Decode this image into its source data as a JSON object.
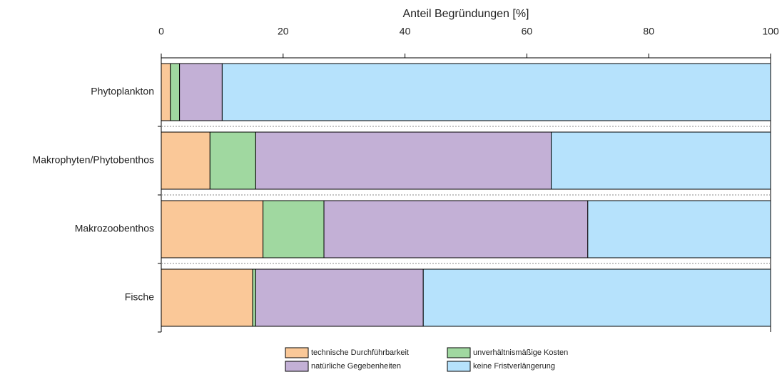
{
  "chart_data": {
    "type": "stacked_barh",
    "x_label": "Anteil Begründungen [%]",
    "categories": [
      "Phytoplankton",
      "Makrophyten/Phytobenthos",
      "Makrozoobenthos",
      "Fische"
    ],
    "series": [
      {
        "name": "technische Durchführbarkeit",
        "color": "#fac898",
        "values": [
          1.5,
          8,
          16.7,
          15
        ]
      },
      {
        "name": "unverhältnismäßige Kosten",
        "color": "#a0d8a0",
        "values": [
          1.5,
          7.5,
          10,
          0.5
        ]
      },
      {
        "name": "natürliche Gegebenheiten",
        "color": "#c3b0d6",
        "values": [
          7,
          48.5,
          43.3,
          27.5
        ]
      },
      {
        "name": "keine Fristverlängerung",
        "color": "#b6e2fc",
        "values": [
          90,
          36,
          30,
          57
        ]
      }
    ],
    "xlim": [
      0,
      100
    ],
    "xticks": [
      0,
      20,
      40,
      60,
      80,
      100
    ]
  }
}
